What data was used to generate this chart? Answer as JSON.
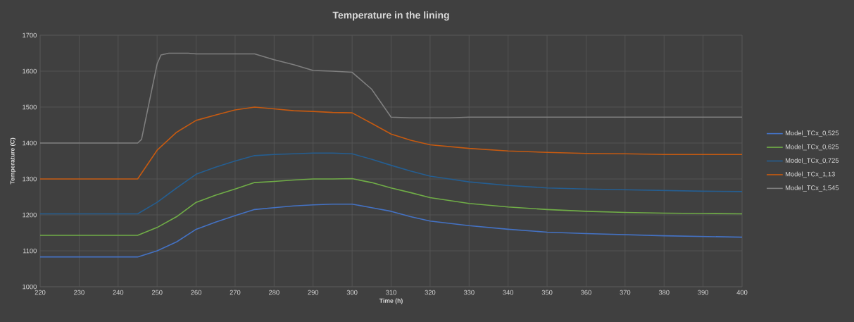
{
  "chart_data": {
    "type": "line",
    "title": "Temperature in the lining",
    "xlabel": "Time (h)",
    "ylabel": "Temperature (C)",
    "xlim": [
      220,
      400
    ],
    "xticks": [
      220,
      230,
      240,
      250,
      260,
      270,
      280,
      290,
      300,
      310,
      320,
      330,
      340,
      350,
      360,
      370,
      380,
      390,
      400
    ],
    "ylim": [
      1000,
      1700
    ],
    "yticks": [
      1000,
      1100,
      1200,
      1300,
      1400,
      1500,
      1600,
      1700
    ],
    "grid": true,
    "legend": "right",
    "marker": "none",
    "line_style": "solid",
    "series": [
      {
        "name": "Model_TCx_0,525",
        "color": "#4472c4",
        "x": [
          220,
          245,
          250,
          255,
          260,
          265,
          270,
          275,
          280,
          285,
          290,
          295,
          300,
          305,
          310,
          315,
          320,
          330,
          340,
          350,
          360,
          370,
          380,
          390,
          400
        ],
        "values": [
          1083,
          1083,
          1100,
          1125,
          1160,
          1180,
          1198,
          1215,
          1220,
          1225,
          1228,
          1230,
          1230,
          1220,
          1210,
          1195,
          1183,
          1170,
          1160,
          1152,
          1148,
          1145,
          1142,
          1140,
          1138
        ]
      },
      {
        "name": "Model_TCx_0,625",
        "color": "#70ad47",
        "x": [
          220,
          245,
          250,
          255,
          260,
          265,
          270,
          275,
          280,
          285,
          290,
          295,
          300,
          305,
          310,
          315,
          320,
          330,
          340,
          350,
          360,
          370,
          380,
          390,
          400
        ],
        "values": [
          1143,
          1143,
          1165,
          1195,
          1235,
          1255,
          1272,
          1290,
          1293,
          1297,
          1300,
          1300,
          1301,
          1290,
          1275,
          1262,
          1248,
          1232,
          1222,
          1215,
          1210,
          1207,
          1205,
          1204,
          1203
        ]
      },
      {
        "name": "Model_TCx_0,725",
        "color": "#255e91",
        "x": [
          220,
          245,
          250,
          255,
          260,
          265,
          270,
          275,
          280,
          285,
          290,
          295,
          300,
          305,
          310,
          315,
          320,
          330,
          340,
          350,
          360,
          370,
          380,
          390,
          400
        ],
        "values": [
          1203,
          1203,
          1235,
          1275,
          1313,
          1333,
          1350,
          1365,
          1368,
          1370,
          1372,
          1372,
          1370,
          1355,
          1338,
          1322,
          1308,
          1292,
          1282,
          1275,
          1272,
          1270,
          1268,
          1266,
          1265
        ]
      },
      {
        "name": "Model_TCx_1,13",
        "color": "#c55a11",
        "x": [
          220,
          245,
          250,
          255,
          260,
          265,
          270,
          275,
          280,
          285,
          290,
          295,
          300,
          305,
          310,
          315,
          320,
          330,
          340,
          350,
          360,
          370,
          380,
          390,
          400
        ],
        "values": [
          1300,
          1300,
          1380,
          1430,
          1463,
          1478,
          1492,
          1500,
          1495,
          1490,
          1488,
          1485,
          1484,
          1455,
          1425,
          1408,
          1395,
          1385,
          1378,
          1374,
          1371,
          1370,
          1368,
          1368,
          1368
        ]
      },
      {
        "name": "Model_TCx_1,545",
        "color": "#7f7f7f",
        "x": [
          220,
          245,
          246,
          250,
          251,
          253,
          258,
          260,
          275,
          280,
          285,
          290,
          295,
          300,
          305,
          310,
          315,
          325,
          330,
          400
        ],
        "values": [
          1400,
          1400,
          1410,
          1620,
          1645,
          1650,
          1650,
          1648,
          1648,
          1632,
          1618,
          1602,
          1600,
          1597,
          1550,
          1472,
          1470,
          1470,
          1472,
          1472
        ]
      }
    ]
  }
}
